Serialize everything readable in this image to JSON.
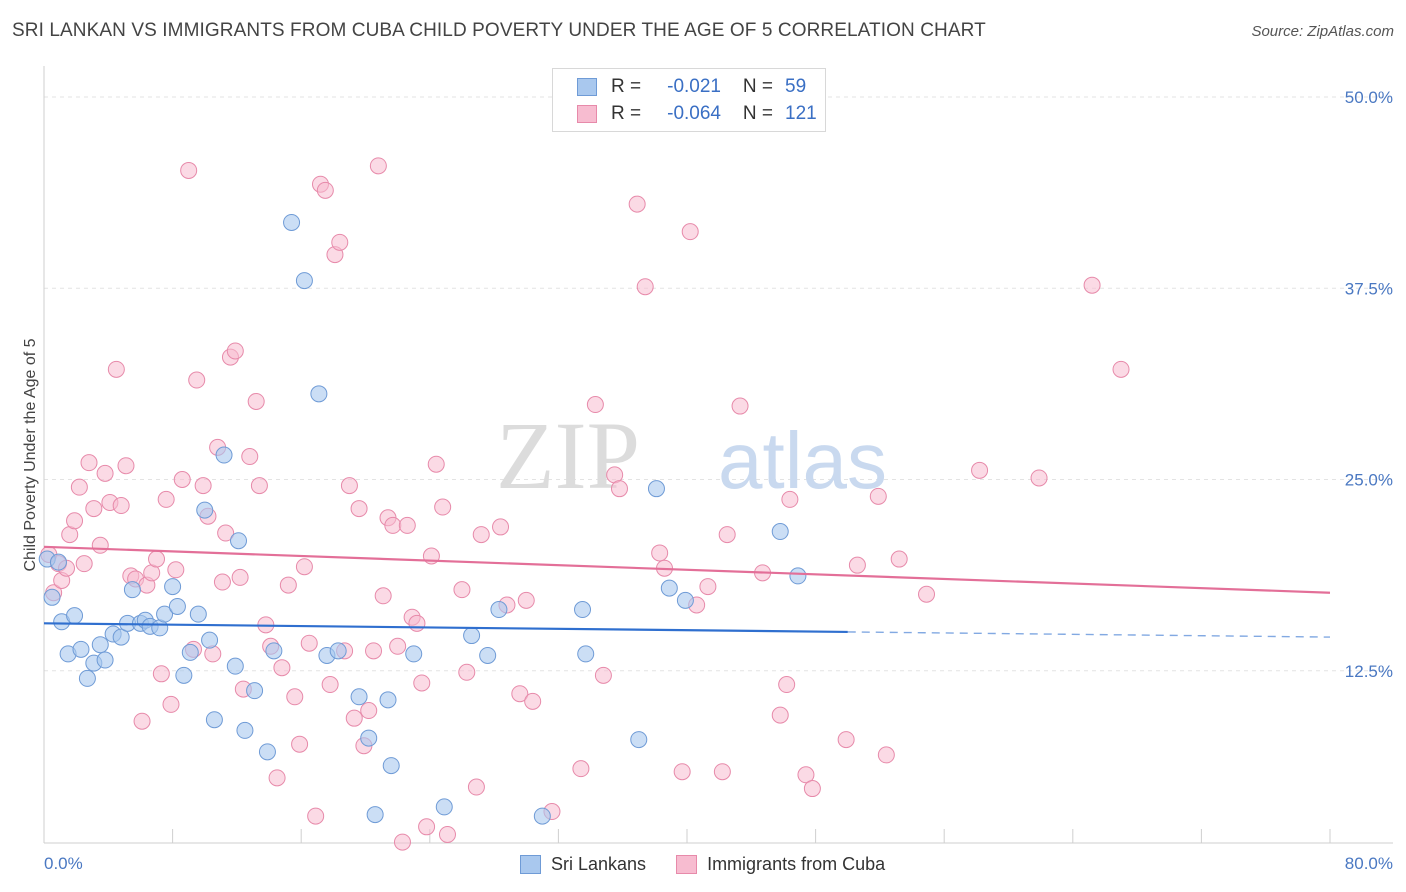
{
  "header": {
    "title": "SRI LANKAN VS IMMIGRANTS FROM CUBA CHILD POVERTY UNDER THE AGE OF 5 CORRELATION CHART",
    "source": "Source: ZipAtlas.com"
  },
  "watermark": {
    "part1": "ZIP",
    "part2": "atlas"
  },
  "legend": {
    "rows": [
      {
        "r_label": "R =",
        "r_value": "-0.021",
        "n_label": "N =",
        "n_value": "59"
      },
      {
        "r_label": "R =",
        "r_value": "-0.064",
        "n_label": "N =",
        "n_value": "121"
      }
    ]
  },
  "bottom_legend": {
    "series1": "Sri Lankans",
    "series2": "Immigrants from Cuba"
  },
  "colors": {
    "blue_fill": "#a9c8ee",
    "blue_stroke": "#6f9bd6",
    "blue_line": "#2f6fcf",
    "pink_fill": "#f7bcd0",
    "pink_stroke": "#e78aaa",
    "pink_line": "#e36f98",
    "tick_text": "#4a78c2",
    "grid": "#e3e3e3"
  },
  "chart_data": {
    "type": "scatter",
    "title": "SRI LANKAN VS IMMIGRANTS FROM CUBA CHILD POVERTY UNDER THE AGE OF 5 CORRELATION CHART",
    "xlabel": "",
    "ylabel": "Child Poverty Under the Age of 5",
    "xlim": [
      0,
      80
    ],
    "ylim": [
      0,
      50
    ],
    "x_tick_labels": [
      "0.0%",
      "80.0%"
    ],
    "y_ticks": [
      {
        "value": 12.5,
        "label": "12.5%"
      },
      {
        "value": 25.0,
        "label": "25.0%"
      },
      {
        "value": 37.5,
        "label": "37.5%"
      },
      {
        "value": 50.0,
        "label": "50.0%"
      }
    ],
    "grid": true,
    "legend_position": "top-center",
    "series": [
      {
        "name": "Sri Lankans",
        "r": -0.021,
        "n": 59,
        "trend": {
          "x": [
            0,
            80
          ],
          "y": [
            15.6,
            14.7
          ],
          "solid_until_x": 50
        },
        "points": [
          [
            0.2,
            19.8
          ],
          [
            0.5,
            17.3
          ],
          [
            1.1,
            15.7
          ],
          [
            1.9,
            16.1
          ],
          [
            1.5,
            13.6
          ],
          [
            2.3,
            13.9
          ],
          [
            2.7,
            12.0
          ],
          [
            3.1,
            13.0
          ],
          [
            3.5,
            14.2
          ],
          [
            3.8,
            13.2
          ],
          [
            4.3,
            14.9
          ],
          [
            4.8,
            14.7
          ],
          [
            5.2,
            15.6
          ],
          [
            5.5,
            17.8
          ],
          [
            6.0,
            15.6
          ],
          [
            6.3,
            15.8
          ],
          [
            6.6,
            15.4
          ],
          [
            7.2,
            15.3
          ],
          [
            7.5,
            16.2
          ],
          [
            8.0,
            18.0
          ],
          [
            8.3,
            16.7
          ],
          [
            8.7,
            12.2
          ],
          [
            9.1,
            13.7
          ],
          [
            9.6,
            16.2
          ],
          [
            10.0,
            23.0
          ],
          [
            10.3,
            14.5
          ],
          [
            10.6,
            9.3
          ],
          [
            11.2,
            26.6
          ],
          [
            11.9,
            12.8
          ],
          [
            12.1,
            21.0
          ],
          [
            12.5,
            8.6
          ],
          [
            13.1,
            11.2
          ],
          [
            13.9,
            7.2
          ],
          [
            14.3,
            13.8
          ],
          [
            15.4,
            41.8
          ],
          [
            16.2,
            38.0
          ],
          [
            17.1,
            30.6
          ],
          [
            17.6,
            13.5
          ],
          [
            18.3,
            13.8
          ],
          [
            19.6,
            10.8
          ],
          [
            20.2,
            8.1
          ],
          [
            20.6,
            3.1
          ],
          [
            21.4,
            10.6
          ],
          [
            21.6,
            6.3
          ],
          [
            23.0,
            13.6
          ],
          [
            24.9,
            3.6
          ],
          [
            26.6,
            14.8
          ],
          [
            27.6,
            13.5
          ],
          [
            28.3,
            16.5
          ],
          [
            31.0,
            3.0
          ],
          [
            33.5,
            16.5
          ],
          [
            33.7,
            13.6
          ],
          [
            37.0,
            8.0
          ],
          [
            38.1,
            24.4
          ],
          [
            38.9,
            17.9
          ],
          [
            39.9,
            17.1
          ],
          [
            45.8,
            21.6
          ],
          [
            46.9,
            18.7
          ],
          [
            0.9,
            19.6
          ]
        ]
      },
      {
        "name": "Immigrants from Cuba",
        "r": -0.064,
        "n": 121,
        "trend": {
          "x": [
            0,
            80
          ],
          "y": [
            20.6,
            17.6
          ]
        },
        "points": [
          [
            0.3,
            20.1
          ],
          [
            0.6,
            17.6
          ],
          [
            0.9,
            19.5
          ],
          [
            1.1,
            18.4
          ],
          [
            1.4,
            19.2
          ],
          [
            1.6,
            21.4
          ],
          [
            1.9,
            22.3
          ],
          [
            2.2,
            24.5
          ],
          [
            2.5,
            19.5
          ],
          [
            2.8,
            26.1
          ],
          [
            3.1,
            23.1
          ],
          [
            3.5,
            20.7
          ],
          [
            3.8,
            25.4
          ],
          [
            4.1,
            23.5
          ],
          [
            4.5,
            32.2
          ],
          [
            4.8,
            23.3
          ],
          [
            5.1,
            25.9
          ],
          [
            5.4,
            18.7
          ],
          [
            5.7,
            18.5
          ],
          [
            6.1,
            9.2
          ],
          [
            6.4,
            18.1
          ],
          [
            6.7,
            18.9
          ],
          [
            7.0,
            19.8
          ],
          [
            7.3,
            12.3
          ],
          [
            7.6,
            23.7
          ],
          [
            7.9,
            10.3
          ],
          [
            8.2,
            19.1
          ],
          [
            8.6,
            25.0
          ],
          [
            9.0,
            45.2
          ],
          [
            9.3,
            13.9
          ],
          [
            9.5,
            31.5
          ],
          [
            9.9,
            24.6
          ],
          [
            10.2,
            22.6
          ],
          [
            10.5,
            13.6
          ],
          [
            10.8,
            27.1
          ],
          [
            11.1,
            18.3
          ],
          [
            11.3,
            21.5
          ],
          [
            11.6,
            33.0
          ],
          [
            11.9,
            33.4
          ],
          [
            12.2,
            18.6
          ],
          [
            12.4,
            11.3
          ],
          [
            12.8,
            26.5
          ],
          [
            13.2,
            30.1
          ],
          [
            13.4,
            24.6
          ],
          [
            13.8,
            15.5
          ],
          [
            14.1,
            14.1
          ],
          [
            14.5,
            5.5
          ],
          [
            14.8,
            12.7
          ],
          [
            15.2,
            18.1
          ],
          [
            15.6,
            10.8
          ],
          [
            15.9,
            7.7
          ],
          [
            16.2,
            19.3
          ],
          [
            16.5,
            14.3
          ],
          [
            16.9,
            3.0
          ],
          [
            17.2,
            44.3
          ],
          [
            17.5,
            43.9
          ],
          [
            17.8,
            11.6
          ],
          [
            18.1,
            39.7
          ],
          [
            18.4,
            40.5
          ],
          [
            18.7,
            13.8
          ],
          [
            19.0,
            24.6
          ],
          [
            19.3,
            9.4
          ],
          [
            19.6,
            23.1
          ],
          [
            19.9,
            7.6
          ],
          [
            20.2,
            9.9
          ],
          [
            20.5,
            13.8
          ],
          [
            20.8,
            45.5
          ],
          [
            21.1,
            17.4
          ],
          [
            21.4,
            22.5
          ],
          [
            21.7,
            22.0
          ],
          [
            22.0,
            14.1
          ],
          [
            22.3,
            1.3
          ],
          [
            22.6,
            22.0
          ],
          [
            22.9,
            16.0
          ],
          [
            23.2,
            15.6
          ],
          [
            23.5,
            11.7
          ],
          [
            23.8,
            2.3
          ],
          [
            24.1,
            20.0
          ],
          [
            24.4,
            26.0
          ],
          [
            24.8,
            23.2
          ],
          [
            25.1,
            1.8
          ],
          [
            26.0,
            17.8
          ],
          [
            26.3,
            12.4
          ],
          [
            26.9,
            4.9
          ],
          [
            27.2,
            21.4
          ],
          [
            28.4,
            21.9
          ],
          [
            28.8,
            16.8
          ],
          [
            29.6,
            11.0
          ],
          [
            30.0,
            17.1
          ],
          [
            30.4,
            10.5
          ],
          [
            31.6,
            3.3
          ],
          [
            33.4,
            6.1
          ],
          [
            34.3,
            29.9
          ],
          [
            34.8,
            12.2
          ],
          [
            35.5,
            25.3
          ],
          [
            35.8,
            24.4
          ],
          [
            36.9,
            43.0
          ],
          [
            37.4,
            37.6
          ],
          [
            38.3,
            20.2
          ],
          [
            38.6,
            19.2
          ],
          [
            39.7,
            5.9
          ],
          [
            40.2,
            41.2
          ],
          [
            40.6,
            16.8
          ],
          [
            41.3,
            18.0
          ],
          [
            42.2,
            5.9
          ],
          [
            42.5,
            21.4
          ],
          [
            43.3,
            29.8
          ],
          [
            44.7,
            18.9
          ],
          [
            45.8,
            9.6
          ],
          [
            46.2,
            11.6
          ],
          [
            46.4,
            23.7
          ],
          [
            47.4,
            5.7
          ],
          [
            47.8,
            4.8
          ],
          [
            49.9,
            8.0
          ],
          [
            50.6,
            19.4
          ],
          [
            51.9,
            23.9
          ],
          [
            52.4,
            7.0
          ],
          [
            53.2,
            19.8
          ],
          [
            54.9,
            17.5
          ],
          [
            58.2,
            25.6
          ],
          [
            61.9,
            25.1
          ],
          [
            65.2,
            37.7
          ],
          [
            67.0,
            32.2
          ]
        ]
      }
    ]
  }
}
